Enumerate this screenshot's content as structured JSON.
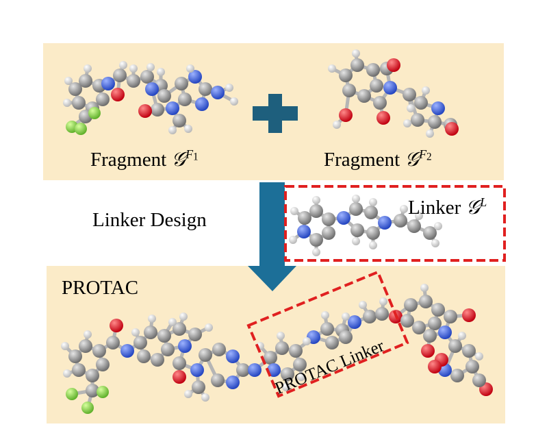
{
  "fragment1": {
    "prefix": "Fragment ",
    "symbol": "𝒢",
    "sup_base": "F",
    "sup_sub": "1"
  },
  "fragment2": {
    "prefix": "Fragment ",
    "symbol": "𝒢",
    "sup_base": "F",
    "sup_sub": "2"
  },
  "linker": {
    "prefix": "Linker ",
    "symbol": "𝒢",
    "sup": "L"
  },
  "linker_design": "Linker Design",
  "protac_title": "PROTAC",
  "protac_linker": "PROTAC Linker",
  "colors": {
    "panel": "#fbebc8",
    "plus": "#1e5f7d",
    "arrow": "#1c6f98",
    "dashed_box": "#e02020",
    "carbon": "#8a8a8a",
    "nitrogen": "#3b5fd8",
    "oxygen": "#e0141e",
    "fluorine": "#8bd14a",
    "hydrogen": "#ffffff"
  }
}
